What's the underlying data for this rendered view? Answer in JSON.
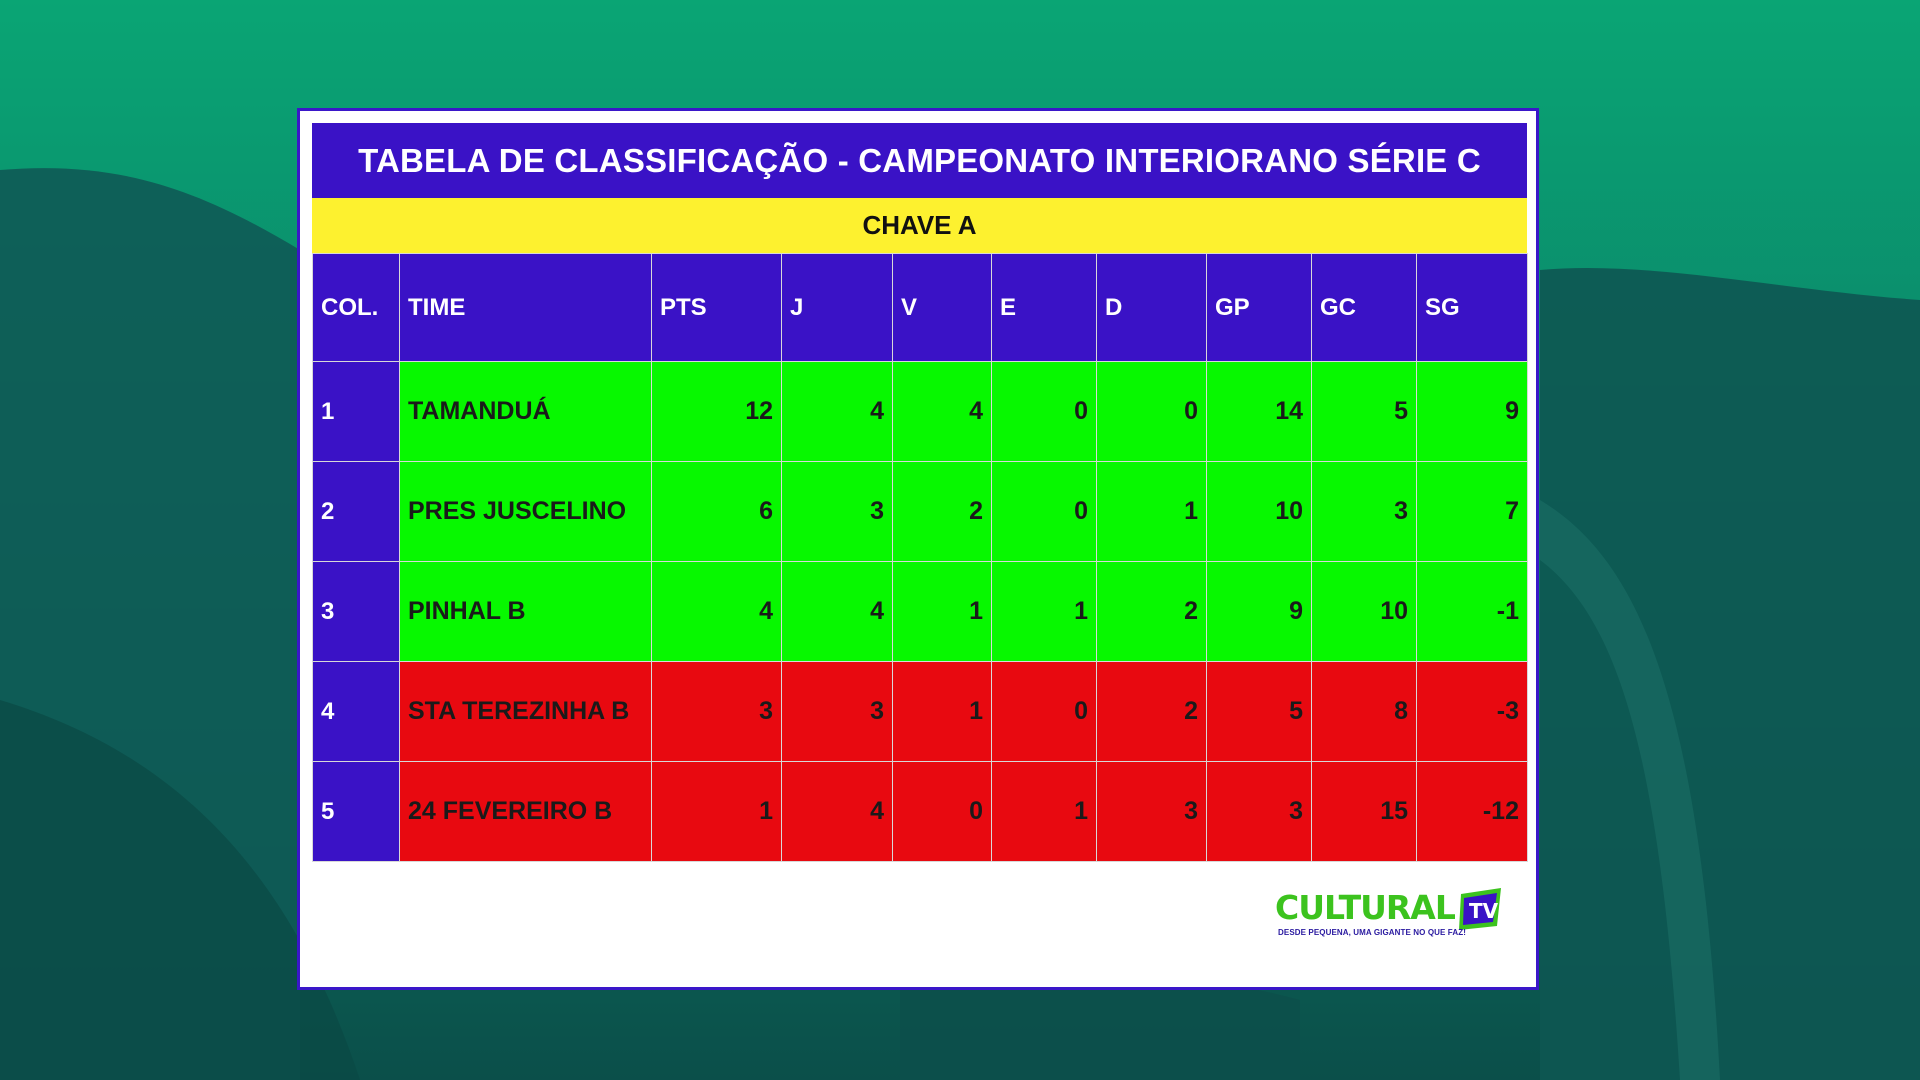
{
  "title": "TABELA DE CLASSIFICAÇÃO - CAMPEONATO INTERIORANO SÉRIE C",
  "subtitle": "CHAVE A",
  "columns": [
    "COL.",
    "TIME",
    "PTS",
    "J",
    "V",
    "E",
    "D",
    "GP",
    "GC",
    "SG"
  ],
  "rows": [
    {
      "pos": "1",
      "team": "TAMANDUÁ",
      "pts": "12",
      "j": "4",
      "v": "4",
      "e": "0",
      "d": "0",
      "gp": "14",
      "gc": "5",
      "sg": "9",
      "status": "green"
    },
    {
      "pos": "2",
      "team": "PRES JUSCELINO",
      "pts": "6",
      "j": "3",
      "v": "2",
      "e": "0",
      "d": "1",
      "gp": "10",
      "gc": "3",
      "sg": "7",
      "status": "green"
    },
    {
      "pos": "3",
      "team": "PINHAL B",
      "pts": "4",
      "j": "4",
      "v": "1",
      "e": "1",
      "d": "2",
      "gp": "9",
      "gc": "10",
      "sg": "-1",
      "status": "green"
    },
    {
      "pos": "4",
      "team": "STA TEREZINHA B",
      "pts": "3",
      "j": "3",
      "v": "1",
      "e": "0",
      "d": "2",
      "gp": "5",
      "gc": "8",
      "sg": "-3",
      "status": "red"
    },
    {
      "pos": "5",
      "team": "24 FEVEREIRO B",
      "pts": "1",
      "j": "4",
      "v": "0",
      "e": "1",
      "d": "3",
      "gp": "3",
      "gc": "15",
      "sg": "-12",
      "status": "red"
    }
  ],
  "logo": {
    "word": "CULTURAL",
    "badge": "TV",
    "tagline": "DESDE PEQUENA, UMA GIGANTE NO QUE FAZ!"
  },
  "colors": {
    "header": "#3a12c6",
    "subtitle": "#fdf12f",
    "qualified": "#07f800",
    "eliminated": "#e80910",
    "logo_green": "#3cc31e"
  }
}
